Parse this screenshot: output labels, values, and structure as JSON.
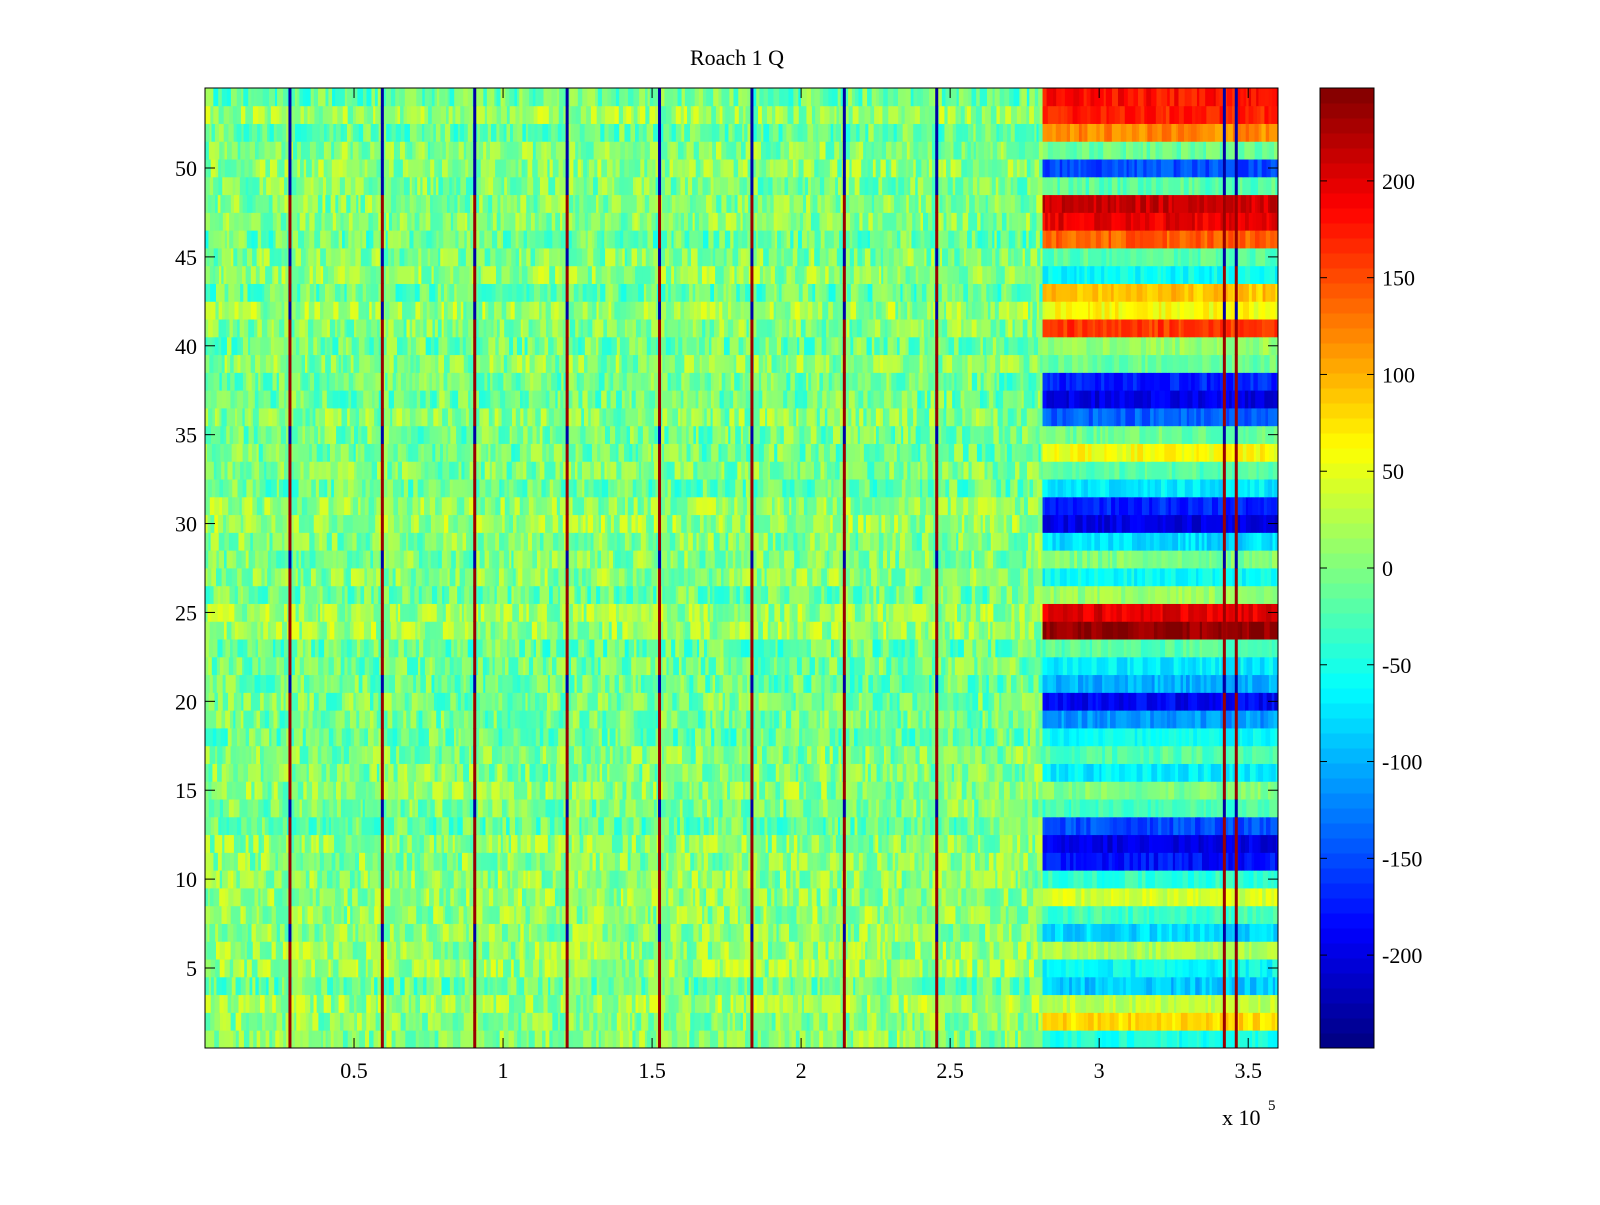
{
  "chart_data": {
    "type": "heatmap",
    "title": "Roach 1 Q",
    "xlabel": "",
    "ylabel": "",
    "x_exponent_label": "x 10",
    "x_exponent_power": "5",
    "x_range": [
      0,
      360000
    ],
    "y_range": [
      0.5,
      54.5
    ],
    "rows": 54,
    "x_ticks": [
      {
        "value": 50000,
        "label": "0.5"
      },
      {
        "value": 100000,
        "label": "1"
      },
      {
        "value": 150000,
        "label": "1.5"
      },
      {
        "value": 200000,
        "label": "2"
      },
      {
        "value": 250000,
        "label": "2.5"
      },
      {
        "value": 300000,
        "label": "3"
      },
      {
        "value": 350000,
        "label": "3.5"
      }
    ],
    "y_ticks": [
      {
        "value": 5,
        "label": "5"
      },
      {
        "value": 10,
        "label": "10"
      },
      {
        "value": 15,
        "label": "15"
      },
      {
        "value": 20,
        "label": "20"
      },
      {
        "value": 25,
        "label": "25"
      },
      {
        "value": 30,
        "label": "30"
      },
      {
        "value": 35,
        "label": "35"
      },
      {
        "value": 40,
        "label": "40"
      },
      {
        "value": 45,
        "label": "45"
      },
      {
        "value": 50,
        "label": "50"
      }
    ],
    "colorbar": {
      "colormap": "jet",
      "range": [
        -248,
        248
      ],
      "ticks": [
        {
          "value": 200,
          "label": "200"
        },
        {
          "value": 150,
          "label": "150"
        },
        {
          "value": 100,
          "label": "100"
        },
        {
          "value": 50,
          "label": "50"
        },
        {
          "value": 0,
          "label": "0"
        },
        {
          "value": -50,
          "label": "-50"
        },
        {
          "value": -100,
          "label": "-100"
        },
        {
          "value": -150,
          "label": "-150"
        },
        {
          "value": -200,
          "label": "-200"
        }
      ]
    },
    "background_value_range": [
      -40,
      40
    ],
    "spike_columns_x": [
      28500,
      59500,
      90500,
      121500,
      152500,
      183500,
      214500,
      245500,
      342000,
      346000
    ],
    "active_region_x_start": 281000,
    "active_region_x_end": 360000,
    "active_region_row_values": {
      "54": 180,
      "53": 170,
      "52": 120,
      "51": -10,
      "50": -150,
      "49": -20,
      "48": 210,
      "47": 195,
      "46": 140,
      "45": -20,
      "44": -60,
      "43": 90,
      "42": 60,
      "41": 160,
      "40": 10,
      "39": -10,
      "38": -170,
      "37": -200,
      "36": -140,
      "35": -10,
      "34": 60,
      "33": -20,
      "32": -70,
      "31": -170,
      "30": -200,
      "29": -80,
      "28": 0,
      "27": -60,
      "26": 10,
      "25": 200,
      "24": 240,
      "23": -20,
      "22": -70,
      "21": -100,
      "20": -190,
      "19": -110,
      "18": -60,
      "17": -20,
      "16": -70,
      "15": 0,
      "14": -30,
      "13": -150,
      "12": -200,
      "11": -180,
      "10": -40,
      "9": 40,
      "8": -30,
      "7": -80,
      "6": 20,
      "5": -60,
      "4": -90,
      "3": 30,
      "2": 80,
      "1": -50
    }
  }
}
